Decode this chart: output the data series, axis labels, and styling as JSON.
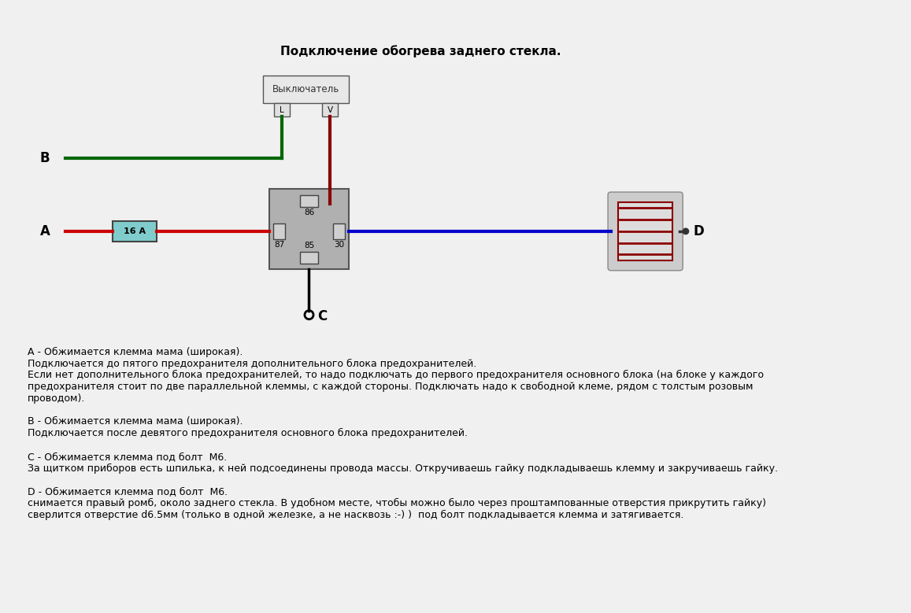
{
  "title": "Подключение обогрева заднего стекла.",
  "bg_color": "#f0f0f0",
  "text_color": "#000000",
  "description_lines": [
    "А - Обжимается клемма мама (широкая).",
    "Подключается до пятого предохранителя дополнительного блока предохранителей.",
    "Если нет дополнительного блока предохранителей, то надо подключать до первого предохранителя основного блока (на блоке у каждого",
    "предохранителя стоит по две параллельной клеммы, с каждой стороны. Подключать надо к свободной клеме, рядом с толстым розовым",
    "проводом).",
    "",
    "В - Обжимается клемма мама (широкая).",
    "Подключается после девятого предохранителя основного блока предохранителей.",
    "",
    "С - Обжимается клемма под болт  М6.",
    "За щитком приборов есть шпилька, к ней подсоединены провода массы. Откручиваешь гайку подкладываешь клемму и закручиваешь гайку.",
    "",
    "D - Обжимается клемма под болт  М6.",
    "снимается правый ромб, около заднего стекла. В удобном месте, чтобы можно было через проштампованные отверстия прикрутить гайку)",
    "сверлится отверстие d6.5мм (только в одной железке, а не насквозь :-) )  под болт подкладывается клемма и затягивается."
  ]
}
